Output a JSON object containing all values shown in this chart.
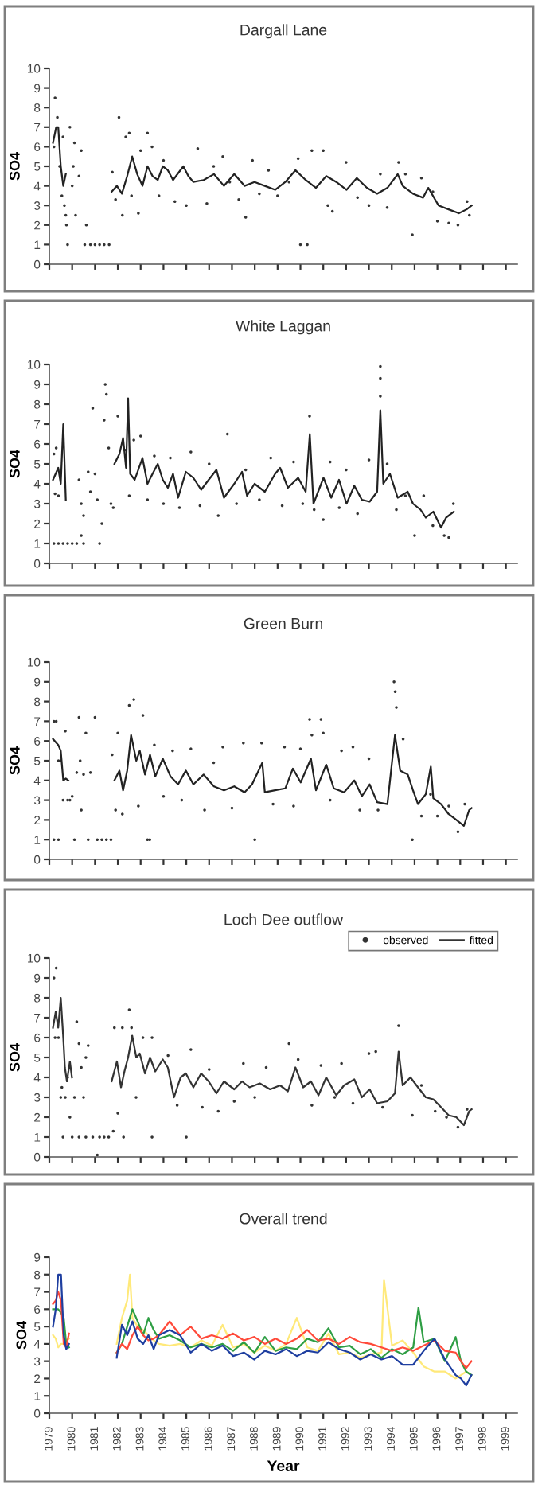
{
  "chart_data": [
    {
      "type": "scatter",
      "title": "Dargall Lane",
      "ylabel": "SO4",
      "xlim": [
        1979,
        1999.5
      ],
      "ylim": [
        0,
        10
      ],
      "yticks": [
        0,
        1,
        2,
        3,
        4,
        5,
        6,
        7,
        8,
        9,
        10
      ],
      "xticks": [
        {
          "value": 1979,
          "label": null
        },
        {
          "value": 1980,
          "label": null
        },
        {
          "value": 1981,
          "label": null
        },
        {
          "value": 1982,
          "label": null
        },
        {
          "value": 1983,
          "label": null
        },
        {
          "value": 1984,
          "label": null
        },
        {
          "value": 1985,
          "label": null
        },
        {
          "value": 1986,
          "label": null
        },
        {
          "value": 1987,
          "label": null
        },
        {
          "value": 1988,
          "label": null
        },
        {
          "value": 1989,
          "label": null
        },
        {
          "value": 1990,
          "label": null
        },
        {
          "value": 1991,
          "label": null
        },
        {
          "value": 1992,
          "label": null
        },
        {
          "value": 1993,
          "label": null
        },
        {
          "value": 1994,
          "label": null
        },
        {
          "value": 1995,
          "label": null
        },
        {
          "value": 1996,
          "label": null
        },
        {
          "value": 1997,
          "label": null
        },
        {
          "value": 1998,
          "label": null
        },
        {
          "value": 1999,
          "label": null
        }
      ],
      "tick_labels": "y",
      "grid": false,
      "legend": false,
      "series": [
        {
          "type": "scatter",
          "marker": "circle",
          "color": "#333333",
          "x": [
            1979.2,
            1979.25,
            1979.35,
            1979.45,
            1979.55,
            1979.6,
            1979.66,
            1979.72,
            1979.75,
            1979.8,
            1979.9,
            1980.0,
            1980.05,
            1980.1,
            1980.15,
            1980.3,
            1980.4,
            1980.55,
            1980.62,
            1980.8,
            1981.0,
            1981.2,
            1981.4,
            1981.62,
            1981.76,
            1981.9,
            1982.05,
            1982.2,
            1982.35,
            1982.5,
            1982.6,
            1982.9,
            1983.0,
            1983.3,
            1983.5,
            1983.8,
            1984.0,
            1984.5,
            1985.0,
            1985.5,
            1985.9,
            1986.2,
            1986.6,
            1986.9,
            1987.3,
            1987.6,
            1987.9,
            1988.2,
            1988.6,
            1989.0,
            1989.5,
            1989.9,
            1990.0,
            1990.3,
            1990.5,
            1991.0,
            1991.2,
            1991.4,
            1992.0,
            1992.5,
            1993.0,
            1993.5,
            1993.8,
            1994.3,
            1994.6,
            1994.9,
            1995.3,
            1995.8,
            1996.0,
            1996.5,
            1996.9,
            1997.3,
            1997.4
          ],
          "values": [
            6.0,
            8.5,
            7.5,
            5.0,
            3.5,
            6.5,
            3.0,
            2.5,
            2.0,
            1.0,
            7.0,
            4.0,
            5.0,
            6.2,
            2.5,
            4.5,
            5.8,
            1.0,
            2.0,
            1.0,
            1.0,
            1.0,
            1.0,
            1.0,
            4.7,
            3.3,
            7.5,
            2.5,
            6.5,
            6.7,
            3.5,
            2.6,
            5.8,
            6.7,
            6.0,
            3.5,
            5.3,
            3.2,
            3.0,
            5.9,
            3.1,
            5.0,
            5.5,
            4.2,
            3.3,
            2.4,
            5.3,
            3.6,
            4.8,
            3.5,
            4.2,
            5.4,
            1.0,
            1.0,
            5.8,
            5.8,
            3.0,
            2.7,
            5.2,
            3.4,
            3.0,
            4.6,
            2.9,
            5.2,
            4.6,
            1.5,
            4.4,
            3.7,
            2.2,
            2.1,
            2.0,
            3.2,
            2.5
          ]
        },
        {
          "type": "line",
          "marker": "none",
          "color": "#222222",
          "x": [
            1979.16,
            1979.3,
            1979.39,
            1979.5,
            1979.61,
            1979.72,
            1980.9,
            1981.73,
            1981.96,
            1982.18,
            1982.41,
            1982.63,
            1982.85,
            1983.08,
            1983.3,
            1983.52,
            1983.75,
            1983.97,
            1984.19,
            1984.42,
            1984.87,
            1985.09,
            1985.31,
            1985.76,
            1986.21,
            1986.65,
            1987.1,
            1987.55,
            1987.99,
            1988.44,
            1988.89,
            1989.34,
            1989.78,
            1990.23,
            1990.68,
            1991.13,
            1991.57,
            1992.02,
            1992.47,
            1992.91,
            1993.36,
            1993.81,
            1994.26,
            1994.48,
            1994.93,
            1995.37,
            1995.6,
            1996.05,
            1996.49,
            1996.94,
            1997.28,
            1997.5
          ],
          "values": [
            6.2,
            7.0,
            7.0,
            5.0,
            4.0,
            4.6,
            null,
            3.7,
            4.0,
            3.6,
            4.5,
            5.5,
            4.6,
            4.0,
            5.0,
            4.5,
            4.3,
            5.0,
            4.8,
            4.3,
            5.0,
            4.5,
            4.2,
            4.3,
            4.6,
            4.0,
            4.6,
            4.0,
            4.2,
            4.0,
            3.8,
            4.2,
            4.8,
            4.3,
            3.9,
            4.5,
            4.2,
            3.8,
            4.4,
            3.9,
            3.6,
            3.9,
            4.6,
            4.0,
            3.6,
            3.4,
            3.9,
            3.0,
            2.8,
            2.6,
            2.8,
            3.0
          ]
        }
      ]
    },
    {
      "type": "scatter",
      "title": "White Laggan",
      "ylabel": "SO4",
      "xlim": [
        1979,
        1999.5
      ],
      "ylim": [
        0,
        10
      ],
      "yticks": [
        0,
        1,
        2,
        3,
        4,
        5,
        6,
        7,
        8,
        9,
        10
      ],
      "xticks": [
        {
          "value": 1979,
          "label": null
        },
        {
          "value": 1980,
          "label": null
        },
        {
          "value": 1981,
          "label": null
        },
        {
          "value": 1982,
          "label": null
        },
        {
          "value": 1983,
          "label": null
        },
        {
          "value": 1984,
          "label": null
        },
        {
          "value": 1985,
          "label": null
        },
        {
          "value": 1986,
          "label": null
        },
        {
          "value": 1987,
          "label": null
        },
        {
          "value": 1988,
          "label": null
        },
        {
          "value": 1989,
          "label": null
        },
        {
          "value": 1990,
          "label": null
        },
        {
          "value": 1991,
          "label": null
        },
        {
          "value": 1992,
          "label": null
        },
        {
          "value": 1993,
          "label": null
        },
        {
          "value": 1994,
          "label": null
        },
        {
          "value": 1995,
          "label": null
        },
        {
          "value": 1996,
          "label": null
        },
        {
          "value": 1997,
          "label": null
        },
        {
          "value": 1998,
          "label": null
        },
        {
          "value": 1999,
          "label": null
        }
      ],
      "tick_labels": "y",
      "grid": false,
      "legend": false,
      "series": [
        {
          "type": "scatter",
          "marker": "circle",
          "color": "#333333",
          "x": [
            1979.2,
            1979.25,
            1979.3,
            1979.4,
            1979.2,
            1979.4,
            1979.6,
            1979.8,
            1980.0,
            1980.2,
            1980.4,
            1980.5,
            1980.3,
            1980.4,
            1980.5,
            1980.7,
            1980.8,
            1980.9,
            1981.0,
            1981.1,
            1981.2,
            1981.3,
            1981.4,
            1981.45,
            1981.5,
            1981.6,
            1981.7,
            1981.8,
            1982.0,
            1982.3,
            1982.5,
            1982.7,
            1983.0,
            1983.3,
            1983.6,
            1984.0,
            1984.3,
            1984.7,
            1985.2,
            1985.6,
            1986.0,
            1986.4,
            1986.8,
            1987.2,
            1987.6,
            1988.2,
            1988.7,
            1989.2,
            1989.7,
            1990.1,
            1990.4,
            1990.6,
            1991.0,
            1991.3,
            1991.7,
            1992.0,
            1992.5,
            1993.0,
            1993.5,
            1993.5,
            1993.5,
            1993.8,
            1994.2,
            1994.6,
            1995.0,
            1995.4,
            1995.8,
            1996.3,
            1996.5,
            1996.7
          ],
          "values": [
            5.5,
            3.5,
            5.8,
            3.4,
            1.0,
            1.0,
            1.0,
            1.0,
            1.0,
            1.0,
            1.4,
            1.0,
            4.2,
            3.0,
            2.4,
            4.6,
            3.6,
            7.8,
            4.5,
            3.2,
            1.0,
            2.0,
            7.2,
            9.0,
            8.5,
            5.8,
            3.0,
            2.8,
            7.4,
            5.7,
            3.4,
            6.2,
            6.4,
            3.2,
            5.4,
            3.0,
            5.3,
            2.8,
            5.6,
            2.9,
            5.0,
            2.4,
            6.5,
            3.0,
            4.7,
            3.2,
            5.3,
            2.9,
            5.1,
            3.0,
            7.4,
            2.7,
            2.2,
            5.1,
            2.8,
            4.7,
            2.5,
            5.2,
            9.9,
            9.3,
            8.4,
            5.0,
            2.7,
            3.4,
            1.4,
            3.4,
            1.9,
            1.4,
            1.3,
            3.0
          ]
        },
        {
          "type": "line",
          "marker": "none",
          "color": "#222222",
          "x": [
            1979.16,
            1979.39,
            1979.5,
            1979.61,
            1979.72,
            1980.9,
            1981.85,
            1982.07,
            1982.23,
            1982.36,
            1982.45,
            1982.54,
            1982.74,
            1983.08,
            1983.3,
            1983.52,
            1983.75,
            1983.97,
            1984.19,
            1984.42,
            1984.64,
            1984.98,
            1985.31,
            1985.65,
            1985.98,
            1986.32,
            1986.65,
            1987.1,
            1987.44,
            1987.66,
            1987.99,
            1988.44,
            1988.89,
            1989.11,
            1989.45,
            1989.9,
            1990.23,
            1990.41,
            1990.57,
            1991.01,
            1991.35,
            1991.69,
            1992.02,
            1992.36,
            1992.69,
            1993.03,
            1993.36,
            1993.5,
            1993.63,
            1993.92,
            1994.26,
            1994.7,
            1994.93,
            1995.26,
            1995.49,
            1995.82,
            1996.16,
            1996.38,
            1996.72
          ],
          "values": [
            4.2,
            4.8,
            4.0,
            7.0,
            3.2,
            null,
            5.0,
            5.5,
            6.3,
            4.8,
            8.3,
            4.5,
            4.2,
            5.3,
            4.0,
            4.5,
            5.0,
            4.2,
            3.8,
            4.5,
            3.3,
            4.6,
            4.3,
            3.7,
            4.2,
            4.7,
            3.3,
            4.0,
            4.6,
            3.4,
            4.0,
            3.6,
            4.5,
            4.8,
            3.8,
            4.3,
            3.6,
            6.5,
            3.0,
            4.3,
            3.3,
            4.2,
            3.0,
            3.9,
            3.2,
            3.1,
            3.6,
            7.7,
            4.0,
            4.5,
            3.3,
            3.6,
            3.0,
            2.7,
            2.3,
            2.6,
            1.8,
            2.3,
            2.6
          ]
        }
      ]
    },
    {
      "type": "scatter",
      "title": "Green Burn",
      "ylabel": "SO4",
      "xlim": [
        1979,
        1999.5
      ],
      "ylim": [
        0,
        10
      ],
      "yticks": [
        0,
        1,
        2,
        3,
        4,
        5,
        6,
        7,
        8,
        9,
        10
      ],
      "xticks": [
        {
          "value": 1979,
          "label": null
        },
        {
          "value": 1980,
          "label": null
        },
        {
          "value": 1981,
          "label": null
        },
        {
          "value": 1982,
          "label": null
        },
        {
          "value": 1983,
          "label": null
        },
        {
          "value": 1984,
          "label": null
        },
        {
          "value": 1985,
          "label": null
        },
        {
          "value": 1986,
          "label": null
        },
        {
          "value": 1987,
          "label": null
        },
        {
          "value": 1988,
          "label": null
        },
        {
          "value": 1989,
          "label": null
        },
        {
          "value": 1990,
          "label": null
        },
        {
          "value": 1991,
          "label": null
        },
        {
          "value": 1992,
          "label": null
        },
        {
          "value": 1993,
          "label": null
        },
        {
          "value": 1994,
          "label": null
        },
        {
          "value": 1995,
          "label": null
        },
        {
          "value": 1996,
          "label": null
        },
        {
          "value": 1997,
          "label": null
        },
        {
          "value": 1998,
          "label": null
        },
        {
          "value": 1999,
          "label": null
        }
      ],
      "tick_labels": "y",
      "grid": false,
      "legend": false,
      "series": [
        {
          "type": "scatter",
          "marker": "circle",
          "color": "#333333",
          "x": [
            1979.2,
            1979.3,
            1979.4,
            1979.5,
            1979.2,
            1979.4,
            1979.6,
            1979.7,
            1979.8,
            1979.9,
            1980.0,
            1980.1,
            1980.2,
            1980.3,
            1980.35,
            1980.4,
            1980.5,
            1980.6,
            1980.8,
            1981.0,
            1980.7,
            1981.1,
            1981.3,
            1981.5,
            1981.7,
            1981.75,
            1981.9,
            1982.0,
            1982.2,
            1982.5,
            1982.7,
            1982.9,
            1983.1,
            1983.3,
            1983.4,
            1983.6,
            1984.0,
            1984.4,
            1984.8,
            1985.2,
            1985.8,
            1986.2,
            1986.6,
            1987.0,
            1987.5,
            1988.0,
            1988.3,
            1988.8,
            1989.3,
            1989.7,
            1990.0,
            1990.4,
            1990.5,
            1990.9,
            1991.0,
            1991.3,
            1991.8,
            1992.3,
            1992.6,
            1993.0,
            1993.4,
            1994.1,
            1994.15,
            1994.2,
            1994.5,
            1994.9,
            1995.3,
            1995.7,
            1996.0,
            1996.5,
            1996.9,
            1997.2
          ],
          "values": [
            7.0,
            7.0,
            5.0,
            5.0,
            1.0,
            1.0,
            3.0,
            6.5,
            3.0,
            3.0,
            3.2,
            1.0,
            4.4,
            7.2,
            5.0,
            2.5,
            4.3,
            6.4,
            4.4,
            7.2,
            1.0,
            1.0,
            1.0,
            1.0,
            1.0,
            5.3,
            2.5,
            6.4,
            2.3,
            7.8,
            8.1,
            2.7,
            7.3,
            1.0,
            1.0,
            5.8,
            3.2,
            5.5,
            3.0,
            5.6,
            2.5,
            4.9,
            5.7,
            2.6,
            5.9,
            1.0,
            5.9,
            2.8,
            5.7,
            2.7,
            5.6,
            7.1,
            6.3,
            7.1,
            6.4,
            3.0,
            5.5,
            5.7,
            2.5,
            5.1,
            2.5,
            9.0,
            8.5,
            7.7,
            6.1,
            1.0,
            2.2,
            3.3,
            2.2,
            2.7,
            1.4,
            2.8
          ]
        },
        {
          "type": "line",
          "marker": "none",
          "color": "#222222",
          "x": [
            1979.16,
            1979.39,
            1979.5,
            1979.61,
            1979.72,
            1979.83,
            1980.9,
            1981.85,
            1982.07,
            1982.23,
            1982.41,
            1982.58,
            1982.81,
            1982.96,
            1983.19,
            1983.41,
            1983.64,
            1983.97,
            1984.31,
            1984.64,
            1984.98,
            1985.31,
            1985.76,
            1986.21,
            1986.65,
            1987.1,
            1987.55,
            1987.88,
            1988.33,
            1988.44,
            1988.89,
            1989.34,
            1989.67,
            1990.01,
            1990.46,
            1990.68,
            1991.13,
            1991.46,
            1991.91,
            1992.36,
            1992.69,
            1993.03,
            1993.36,
            1993.81,
            1994.14,
            1994.37,
            1994.7,
            1994.93,
            1995.15,
            1995.49,
            1995.71,
            1995.82,
            1996.16,
            1996.49,
            1996.83,
            1997.16,
            1997.39,
            1997.5
          ],
          "values": [
            6.1,
            5.8,
            5.5,
            4.0,
            4.1,
            4.0,
            null,
            4.0,
            4.5,
            3.5,
            4.5,
            6.3,
            5.0,
            5.5,
            4.3,
            5.3,
            4.2,
            5.1,
            4.2,
            3.8,
            4.5,
            3.8,
            4.3,
            3.7,
            3.5,
            3.7,
            3.4,
            3.8,
            4.9,
            3.4,
            3.5,
            3.6,
            4.6,
            3.9,
            5.1,
            3.5,
            4.8,
            3.6,
            3.4,
            4.0,
            3.2,
            3.8,
            2.9,
            2.8,
            6.3,
            4.5,
            4.3,
            3.5,
            2.8,
            3.3,
            4.7,
            3.1,
            2.8,
            2.3,
            2.0,
            1.7,
            2.5,
            2.6
          ]
        }
      ]
    },
    {
      "type": "scatter",
      "title": "Loch Dee outflow",
      "ylabel": "SO4",
      "xlim": [
        1979,
        1999.5
      ],
      "ylim": [
        0,
        10
      ],
      "yticks": [
        0,
        1,
        2,
        3,
        4,
        5,
        6,
        7,
        8,
        9,
        10
      ],
      "xticks": [
        {
          "value": 1979,
          "label": null
        },
        {
          "value": 1980,
          "label": null
        },
        {
          "value": 1981,
          "label": null
        },
        {
          "value": 1982,
          "label": null
        },
        {
          "value": 1983,
          "label": null
        },
        {
          "value": 1984,
          "label": null
        },
        {
          "value": 1985,
          "label": null
        },
        {
          "value": 1986,
          "label": null
        },
        {
          "value": 1987,
          "label": null
        },
        {
          "value": 1988,
          "label": null
        },
        {
          "value": 1989,
          "label": null
        },
        {
          "value": 1990,
          "label": null
        },
        {
          "value": 1991,
          "label": null
        },
        {
          "value": 1992,
          "label": null
        },
        {
          "value": 1993,
          "label": null
        },
        {
          "value": 1994,
          "label": null
        },
        {
          "value": 1995,
          "label": null
        },
        {
          "value": 1996,
          "label": null
        },
        {
          "value": 1997,
          "label": null
        },
        {
          "value": 1998,
          "label": null
        },
        {
          "value": 1999,
          "label": null
        }
      ],
      "tick_labels": "y",
      "grid": false,
      "legend": "top right",
      "series": [
        {
          "type": "scatter",
          "name": "observed",
          "marker": "circle",
          "color": "#333333",
          "x": [
            1979.2,
            1979.3,
            1979.25,
            1979.4,
            1979.5,
            1979.55,
            1979.6,
            1979.7,
            1979.8,
            1979.9,
            1980.0,
            1980.1,
            1980.2,
            1980.3,
            1980.4,
            1980.5,
            1980.6,
            1980.7,
            1980.3,
            1980.6,
            1980.9,
            1981.1,
            1981.2,
            1981.4,
            1981.6,
            1981.8,
            1981.85,
            1982.0,
            1982.2,
            1982.25,
            1982.5,
            1982.6,
            1982.8,
            1983.1,
            1983.5,
            1983.5,
            1984.2,
            1984.6,
            1985.0,
            1985.2,
            1985.7,
            1986.0,
            1986.4,
            1987.1,
            1987.5,
            1988.0,
            1988.5,
            1989.5,
            1989.9,
            1990.5,
            1990.9,
            1991.5,
            1991.8,
            1992.3,
            1993.0,
            1993.3,
            1993.6,
            1994.3,
            1994.9,
            1995.3,
            1995.9,
            1996.4,
            1996.9,
            1997.3
          ],
          "values": [
            9.0,
            9.5,
            6.0,
            6.0,
            3.0,
            3.5,
            1.0,
            3.0,
            4.0,
            2.0,
            1.0,
            3.0,
            6.8,
            5.7,
            4.5,
            3.0,
            5.0,
            5.6,
            1.0,
            1.0,
            1.0,
            0.1,
            1.0,
            1.0,
            1.0,
            1.3,
            6.5,
            2.2,
            6.5,
            1.0,
            7.4,
            6.5,
            3.0,
            6.0,
            6.0,
            1.0,
            5.1,
            2.6,
            1.0,
            5.4,
            2.5,
            4.4,
            2.3,
            2.8,
            4.7,
            3.0,
            4.5,
            5.7,
            4.9,
            2.6,
            4.6,
            3.0,
            4.7,
            2.7,
            5.2,
            5.3,
            2.5,
            6.6,
            2.1,
            3.6,
            2.3,
            2.0,
            1.5,
            2.4
          ]
        },
        {
          "type": "line",
          "name": "fitted",
          "marker": "none",
          "color": "#333333",
          "x": [
            1979.16,
            1979.28,
            1979.39,
            1979.5,
            1979.61,
            1979.68,
            1979.77,
            1979.9,
            1979.99,
            1980.9,
            1981.73,
            1981.96,
            1982.14,
            1982.29,
            1982.45,
            1982.63,
            1982.81,
            1982.96,
            1983.19,
            1983.41,
            1983.64,
            1983.97,
            1984.19,
            1984.46,
            1984.75,
            1984.98,
            1985.31,
            1985.65,
            1985.98,
            1986.32,
            1986.65,
            1987.1,
            1987.44,
            1987.77,
            1988.22,
            1988.67,
            1989.11,
            1989.45,
            1989.78,
            1990.12,
            1990.46,
            1990.79,
            1991.13,
            1991.57,
            1991.91,
            1992.36,
            1992.69,
            1993.03,
            1993.36,
            1993.81,
            1994.14,
            1994.3,
            1994.48,
            1994.82,
            1995.15,
            1995.49,
            1995.82,
            1996.16,
            1996.49,
            1996.83,
            1997.16,
            1997.39,
            1997.5
          ],
          "values": [
            6.5,
            7.3,
            6.5,
            8.0,
            6.0,
            4.5,
            3.8,
            4.8,
            4.0,
            null,
            3.8,
            4.8,
            3.5,
            4.3,
            5.0,
            6.1,
            5.0,
            5.2,
            4.2,
            5.0,
            4.3,
            4.9,
            4.5,
            3.0,
            4.0,
            4.2,
            3.5,
            4.2,
            3.8,
            3.2,
            3.8,
            3.4,
            3.8,
            3.5,
            3.7,
            3.4,
            3.6,
            3.3,
            4.5,
            3.5,
            3.8,
            3.1,
            4.0,
            3.1,
            3.6,
            3.9,
            3.0,
            3.4,
            2.7,
            2.8,
            3.2,
            5.3,
            3.6,
            4.0,
            3.5,
            3.0,
            2.9,
            2.5,
            2.1,
            2.0,
            1.6,
            2.3,
            2.4
          ]
        }
      ]
    },
    {
      "type": "line",
      "title": "Overall trend",
      "ylabel": "SO4",
      "xlabel": "Year",
      "xlim": [
        1979,
        1999.5
      ],
      "ylim": [
        0,
        9
      ],
      "yticks": [
        0,
        1,
        2,
        3,
        4,
        5,
        6,
        7,
        8,
        9
      ],
      "xticks": [
        1979,
        1980,
        1981,
        1982,
        1983,
        1984,
        1985,
        1986,
        1987,
        1988,
        1989,
        1990,
        1991,
        1992,
        1993,
        1994,
        1995,
        1996,
        1997,
        1998,
        1999
      ],
      "grid": false,
      "legend": false,
      "series": [
        {
          "color": "#ffe97a",
          "x": [
            1979.16,
            1979.28,
            1979.39,
            1979.51,
            1979.63,
            1979.74,
            1979.86,
            1981.0,
            1981.95,
            1982.18,
            1982.41,
            1982.53,
            1982.64,
            1982.87,
            1983.11,
            1983.34,
            1983.57,
            1983.8,
            1984.27,
            1984.73,
            1985.19,
            1985.66,
            1986.12,
            1986.59,
            1987.05,
            1987.52,
            1987.98,
            1988.44,
            1988.91,
            1989.37,
            1989.84,
            1990.3,
            1990.76,
            1991.23,
            1991.69,
            1992.16,
            1992.62,
            1993.08,
            1993.55,
            1993.66,
            1994.01,
            1994.48,
            1994.94,
            1995.4,
            1995.87,
            1996.33,
            1996.8,
            1997.03,
            1997.26,
            1997.49
          ],
          "values": [
            4.5,
            4.3,
            3.8,
            4.0,
            4.0,
            4.2,
            4.3,
            null,
            4.0,
            5.5,
            6.5,
            8.0,
            5.5,
            5.0,
            4.8,
            4.5,
            4.2,
            4.0,
            3.9,
            4.0,
            3.8,
            4.2,
            3.9,
            5.1,
            3.8,
            4.0,
            3.5,
            3.9,
            3.6,
            4.0,
            5.5,
            3.8,
            3.6,
            4.6,
            3.4,
            3.5,
            3.2,
            3.4,
            3.5,
            7.7,
            3.9,
            4.2,
            3.5,
            2.7,
            2.4,
            2.4,
            2.0,
            2.2,
            2.4,
            2.2
          ]
        },
        {
          "color": "#2e9e44",
          "x": [
            1979.16,
            1979.28,
            1979.39,
            1979.51,
            1979.63,
            1979.74,
            1979.86,
            1981.0,
            1981.95,
            1982.18,
            1982.41,
            1982.64,
            1982.87,
            1983.11,
            1983.34,
            1983.57,
            1983.8,
            1984.27,
            1984.73,
            1985.19,
            1985.66,
            1986.12,
            1986.59,
            1987.05,
            1987.52,
            1987.98,
            1988.44,
            1988.91,
            1989.37,
            1989.84,
            1990.3,
            1990.76,
            1991.23,
            1991.69,
            1992.16,
            1992.62,
            1993.08,
            1993.55,
            1994.01,
            1994.48,
            1994.94,
            1995.17,
            1995.4,
            1995.87,
            1996.33,
            1996.8,
            1997.03,
            1997.26,
            1997.49
          ],
          "values": [
            6.0,
            6.0,
            6.0,
            5.8,
            5.5,
            4.0,
            3.8,
            null,
            3.5,
            4.0,
            5.0,
            6.0,
            5.3,
            4.5,
            5.5,
            4.8,
            4.3,
            4.5,
            4.2,
            3.8,
            4.0,
            3.8,
            4.0,
            3.6,
            4.1,
            3.5,
            4.4,
            3.6,
            3.8,
            3.7,
            4.3,
            4.1,
            4.9,
            3.8,
            3.9,
            3.4,
            3.7,
            3.2,
            3.7,
            3.4,
            3.8,
            6.1,
            4.1,
            4.3,
            3.0,
            4.4,
            3.0,
            2.4,
            2.2
          ]
        },
        {
          "color": "#ff4a3a",
          "x": [
            1979.16,
            1979.28,
            1979.39,
            1979.51,
            1979.63,
            1979.74,
            1979.86,
            1981.0,
            1981.95,
            1982.18,
            1982.41,
            1982.64,
            1982.87,
            1983.11,
            1983.34,
            1983.57,
            1983.8,
            1984.27,
            1984.73,
            1985.19,
            1985.66,
            1986.12,
            1986.59,
            1987.05,
            1987.52,
            1987.98,
            1988.44,
            1988.91,
            1989.37,
            1989.84,
            1990.3,
            1990.76,
            1991.23,
            1991.69,
            1992.16,
            1992.62,
            1993.08,
            1993.55,
            1994.01,
            1994.48,
            1994.94,
            1995.4,
            1995.87,
            1996.33,
            1996.8,
            1997.03,
            1997.26,
            1997.49
          ],
          "values": [
            6.3,
            6.5,
            7.0,
            6.5,
            4.0,
            3.8,
            4.6,
            null,
            3.5,
            4.0,
            3.7,
            4.5,
            5.0,
            4.5,
            4.2,
            4.3,
            4.5,
            5.3,
            4.5,
            5.0,
            4.3,
            4.5,
            4.3,
            4.6,
            4.2,
            4.4,
            4.0,
            4.3,
            4.0,
            4.3,
            4.8,
            4.2,
            4.3,
            4.0,
            4.4,
            4.1,
            4.0,
            3.8,
            3.6,
            3.8,
            3.6,
            3.9,
            4.2,
            3.6,
            3.5,
            3.0,
            2.6,
            3.0
          ]
        },
        {
          "color": "#1f3fa0",
          "x": [
            1979.16,
            1979.28,
            1979.39,
            1979.51,
            1979.63,
            1979.74,
            1979.86,
            1981.0,
            1981.95,
            1982.18,
            1982.41,
            1982.64,
            1982.87,
            1983.11,
            1983.34,
            1983.57,
            1983.8,
            1984.27,
            1984.73,
            1985.19,
            1985.66,
            1986.12,
            1986.59,
            1987.05,
            1987.52,
            1987.98,
            1988.44,
            1988.91,
            1989.37,
            1989.84,
            1990.3,
            1990.76,
            1991.23,
            1991.69,
            1992.16,
            1992.62,
            1993.08,
            1993.55,
            1994.01,
            1994.48,
            1994.94,
            1995.4,
            1995.87,
            1996.33,
            1996.8,
            1997.03,
            1997.26,
            1997.49
          ],
          "values": [
            5.0,
            6.0,
            8.0,
            8.0,
            4.5,
            3.7,
            4.0,
            null,
            3.2,
            5.1,
            4.5,
            5.3,
            4.3,
            4.0,
            4.5,
            3.7,
            4.5,
            4.8,
            4.5,
            3.5,
            4.0,
            3.6,
            3.9,
            3.3,
            3.5,
            3.1,
            3.6,
            3.4,
            3.7,
            3.3,
            3.6,
            3.5,
            4.1,
            3.7,
            3.5,
            3.1,
            3.4,
            3.1,
            3.3,
            2.8,
            2.8,
            3.6,
            4.3,
            3.1,
            2.2,
            2.0,
            1.6,
            2.2
          ]
        }
      ]
    }
  ]
}
